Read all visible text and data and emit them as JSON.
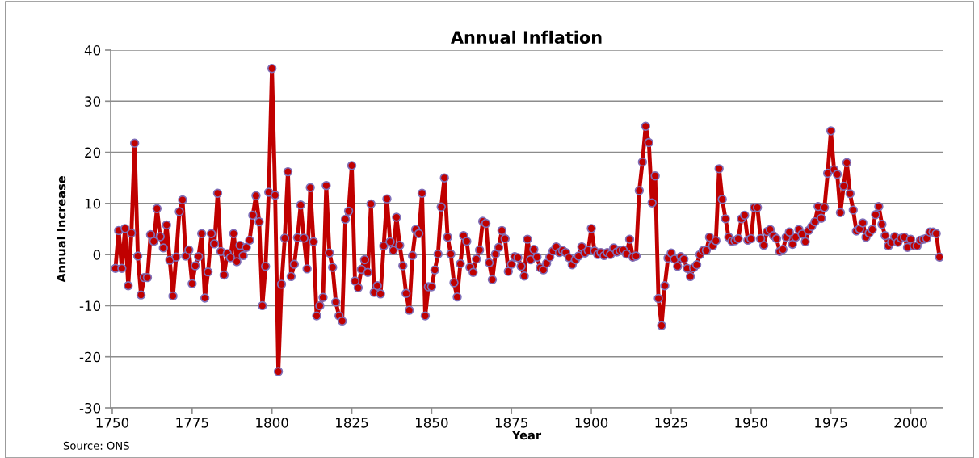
{
  "chart_data": {
    "type": "line",
    "title": "Annual Inflation",
    "xlabel": "Year",
    "ylabel": "Annual Increase",
    "annotations": [
      "Source: ONS"
    ],
    "xlim": [
      1749.5,
      2010
    ],
    "xticks": [
      1750,
      1775,
      1800,
      1825,
      1850,
      1875,
      1900,
      1925,
      1950,
      1975,
      2000
    ],
    "ylim": [
      -30,
      40
    ],
    "yticks": [
      -30,
      -20,
      -10,
      0,
      10,
      20,
      30,
      40
    ],
    "grid": "y",
    "marker": "circle",
    "line_style": "solid",
    "series": [
      {
        "color": "#c00000",
        "x": [
          1751,
          1752,
          1753,
          1754,
          1755,
          1756,
          1757,
          1758,
          1759,
          1760,
          1761,
          1762,
          1763,
          1764,
          1765,
          1766,
          1767,
          1768,
          1769,
          1770,
          1771,
          1772,
          1773,
          1774,
          1775,
          1776,
          1777,
          1778,
          1779,
          1780,
          1781,
          1782,
          1783,
          1784,
          1785,
          1786,
          1787,
          1788,
          1789,
          1790,
          1791,
          1792,
          1793,
          1794,
          1795,
          1796,
          1797,
          1798,
          1799,
          1800,
          1801,
          1802,
          1803,
          1804,
          1805,
          1806,
          1807,
          1808,
          1809,
          1810,
          1811,
          1812,
          1813,
          1814,
          1815,
          1816,
          1817,
          1818,
          1819,
          1820,
          1821,
          1822,
          1823,
          1824,
          1825,
          1826,
          1827,
          1828,
          1829,
          1830,
          1831,
          1832,
          1833,
          1834,
          1835,
          1836,
          1837,
          1838,
          1839,
          1840,
          1841,
          1842,
          1843,
          1844,
          1845,
          1846,
          1847,
          1848,
          1849,
          1850,
          1851,
          1852,
          1853,
          1854,
          1855,
          1856,
          1857,
          1858,
          1859,
          1860,
          1861,
          1862,
          1863,
          1864,
          1865,
          1866,
          1867,
          1868,
          1869,
          1870,
          1871,
          1872,
          1873,
          1874,
          1875,
          1876,
          1877,
          1878,
          1879,
          1880,
          1881,
          1882,
          1883,
          1884,
          1885,
          1886,
          1887,
          1888,
          1889,
          1890,
          1891,
          1892,
          1893,
          1894,
          1895,
          1896,
          1897,
          1898,
          1899,
          1900,
          1901,
          1902,
          1903,
          1904,
          1905,
          1906,
          1907,
          1908,
          1909,
          1910,
          1911,
          1912,
          1913,
          1914,
          1915,
          1916,
          1917,
          1918,
          1919,
          1920,
          1921,
          1922,
          1923,
          1924,
          1925,
          1926,
          1927,
          1928,
          1929,
          1930,
          1931,
          1932,
          1933,
          1934,
          1935,
          1936,
          1937,
          1938,
          1939,
          1940,
          1941,
          1942,
          1943,
          1944,
          1945,
          1946,
          1947,
          1948,
          1949,
          1950,
          1951,
          1952,
          1953,
          1954,
          1955,
          1956,
          1957,
          1958,
          1959,
          1960,
          1961,
          1962,
          1963,
          1964,
          1965,
          1966,
          1967,
          1968,
          1969,
          1970,
          1971,
          1972,
          1973,
          1974,
          1975,
          1976,
          1977,
          1978,
          1979,
          1980,
          1981,
          1982,
          1983,
          1984,
          1985,
          1986,
          1987,
          1988,
          1989,
          1990,
          1991,
          1992,
          1993,
          1994,
          1995,
          1996,
          1997,
          1998,
          1999,
          2000,
          2001,
          2002,
          2003,
          2004,
          2005,
          2006,
          2007,
          2008,
          2009
        ],
        "values": [
          -2.7,
          4.7,
          -2.7,
          5.1,
          -6.1,
          4.2,
          21.8,
          -0.3,
          -7.9,
          -4.5,
          -4.5,
          3.9,
          2.6,
          9.0,
          3.5,
          1.3,
          5.8,
          -1.1,
          -8.1,
          -0.5,
          8.4,
          10.7,
          -0.3,
          0.9,
          -5.7,
          -2.2,
          -0.4,
          4.1,
          -8.5,
          -3.4,
          4.1,
          2.1,
          12.0,
          0.6,
          -4.0,
          0.2,
          -0.6,
          4.1,
          -1.4,
          1.8,
          -0.2,
          1.4,
          2.8,
          7.7,
          11.5,
          6.4,
          -10.0,
          -2.3,
          12.2,
          36.4,
          11.6,
          -22.9,
          -5.8,
          3.2,
          16.2,
          -4.3,
          -1.9,
          3.3,
          9.7,
          3.2,
          -2.8,
          13.1,
          2.5,
          -12.0,
          -10.0,
          -8.4,
          13.5,
          0.3,
          -2.5,
          -9.3,
          -12.0,
          -13.0,
          6.9,
          8.5,
          17.4,
          -5.2,
          -6.5,
          -2.9,
          -1.0,
          -3.5,
          9.9,
          -7.4,
          -6.1,
          -7.7,
          1.7,
          10.9,
          2.5,
          0.8,
          7.3,
          1.8,
          -2.2,
          -7.6,
          -10.9,
          -0.2,
          4.9,
          4.1,
          12.0,
          -12.0,
          -6.3,
          -6.3,
          -3.0,
          0.1,
          9.3,
          15.0,
          3.4,
          0.1,
          -5.5,
          -8.3,
          -1.8,
          3.7,
          2.6,
          -2.5,
          -3.5,
          -0.9,
          0.9,
          6.5,
          6.1,
          -1.6,
          -4.9,
          0.1,
          1.4,
          4.7,
          3.1,
          -3.3,
          -1.9,
          -0.4,
          -0.6,
          -2.3,
          -4.2,
          3.0,
          -1.0,
          1.0,
          -0.5,
          -2.6,
          -3.0,
          -1.7,
          -0.5,
          0.7,
          1.5,
          0.4,
          0.8,
          0.4,
          -0.6,
          -2.0,
          -1.0,
          -0.3,
          1.5,
          0.3,
          0.8,
          5.1,
          0.7,
          0.0,
          0.4,
          -0.2,
          0.4,
          0.0,
          1.3,
          0.5,
          0.8,
          0.9,
          0.1,
          3.0,
          -0.5,
          -0.3,
          12.5,
          18.1,
          25.1,
          21.9,
          10.1,
          15.4,
          -8.6,
          -13.9,
          -6.1,
          -0.7,
          0.3,
          -0.9,
          -2.3,
          -0.4,
          -0.9,
          -2.7,
          -4.3,
          -2.6,
          -2.0,
          0.0,
          0.8,
          0.8,
          3.4,
          1.7,
          2.7,
          16.8,
          10.8,
          7.0,
          3.4,
          2.6,
          2.7,
          3.1,
          7.0,
          7.7,
          2.8,
          3.1,
          9.2,
          9.2,
          3.1,
          1.8,
          4.5,
          4.9,
          3.7,
          3.1,
          0.6,
          1.0,
          3.4,
          4.4,
          2.0,
          3.4,
          4.9,
          4.0,
          2.5,
          4.7,
          5.5,
          6.4,
          9.4,
          7.1,
          9.2,
          15.9,
          24.2,
          16.6,
          15.7,
          8.2,
          13.4,
          18.0,
          11.9,
          8.7,
          4.6,
          5.0,
          6.2,
          3.4,
          4.2,
          4.9,
          7.8,
          9.4,
          5.9,
          3.7,
          1.7,
          2.4,
          3.5,
          2.4,
          3.2,
          3.4,
          1.4,
          3.0,
          1.7,
          1.7,
          2.8,
          3.0,
          3.2,
          4.4,
          4.4,
          4.1,
          -0.5
        ]
      }
    ]
  }
}
